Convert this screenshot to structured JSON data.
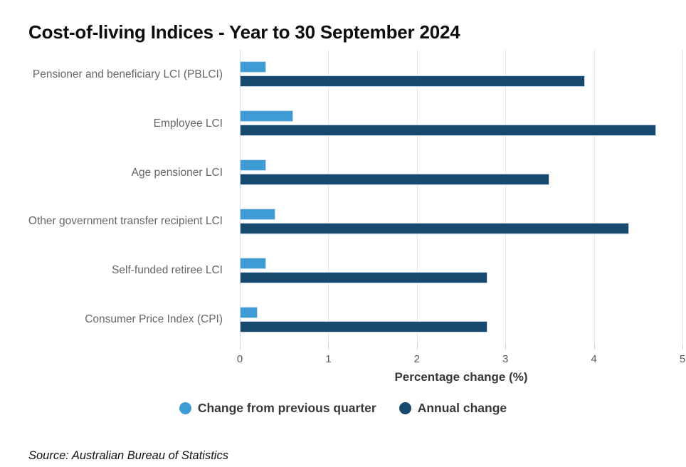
{
  "title": "Cost-of-living Indices - Year to 30 September 2024",
  "source_note": "Source: Australian Bureau of Statistics",
  "colors": {
    "quarter_series": "#3E9BD3",
    "annual_series": "#17486E",
    "gridline": "#e7e7e7",
    "zero_axis_line": "#ccdcee",
    "tick_mark": "#c8d4e2",
    "category_text": "#666666",
    "tick_text": "#595959",
    "axis_title_text": "#383838"
  },
  "chart_data": {
    "type": "bar",
    "orientation": "horizontal",
    "title": "Cost-of-living Indices - Year to 30 September 2024",
    "categories": [
      "Pensioner and beneficiary LCI (PBLCI)",
      "Employee LCI",
      "Age pensioner LCI",
      "Other government transfer recipient LCI",
      "Self-funded retiree LCI",
      "Consumer Price Index (CPI)"
    ],
    "series": [
      {
        "name": "Change from previous quarter",
        "color": "#3E9BD3",
        "values": [
          0.3,
          0.6,
          0.3,
          0.4,
          0.3,
          0.2
        ]
      },
      {
        "name": "Annual change",
        "color": "#17486E",
        "values": [
          3.9,
          4.7,
          3.5,
          4.4,
          2.8,
          2.8
        ]
      }
    ],
    "xlabel": "Percentage change (%)",
    "ylabel": "",
    "xlim": [
      0,
      5
    ],
    "x_ticks": [
      "0",
      "1",
      "2",
      "3",
      "4",
      "5"
    ],
    "grid": true,
    "legend_position": "bottom",
    "bar_order_per_category": [
      "Change from previous quarter",
      "Annual change"
    ]
  },
  "x_axis": {
    "label": "Percentage change (%)"
  },
  "legend": {
    "items": [
      {
        "label": "Change from previous quarter",
        "color": "#3E9BD3"
      },
      {
        "label": "Annual change",
        "color": "#17486E"
      }
    ]
  }
}
